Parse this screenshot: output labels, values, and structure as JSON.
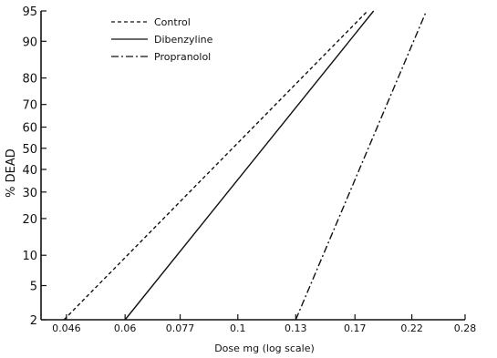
{
  "chart_data": {
    "type": "line",
    "xlabel": "Dose mg (log scale)",
    "ylabel": "% DEAD",
    "x_scale": "log",
    "y_scale": "probit",
    "xlim": [
      0.041,
      0.28
    ],
    "ylim": [
      2,
      95
    ],
    "x_ticks": [
      0.046,
      0.06,
      0.077,
      0.1,
      0.13,
      0.17,
      0.22,
      0.28
    ],
    "x_tick_labels": [
      "0.046",
      "0.06",
      "0.077",
      "0.1",
      "0.13",
      "0.17",
      "0.22",
      "0.28"
    ],
    "y_ticks": [
      2,
      5,
      10,
      20,
      30,
      40,
      50,
      60,
      70,
      80,
      90,
      95
    ],
    "y_tick_labels": [
      "2",
      "5",
      "10",
      "20",
      "30",
      "40",
      "50",
      "60",
      "70",
      "80",
      "90",
      "95"
    ],
    "legend_position": "top-left",
    "grid": false,
    "series": [
      {
        "name": "Control",
        "style": "dashed",
        "x": [
          0.0455,
          0.18
        ],
        "y": [
          2,
          95
        ]
      },
      {
        "name": "Dibenzyline",
        "style": "solid",
        "x": [
          0.06,
          0.185
        ],
        "y": [
          2,
          95
        ]
      },
      {
        "name": "Propranolol",
        "style": "dashdot",
        "x": [
          0.13,
          0.235
        ],
        "y": [
          2,
          95
        ]
      }
    ]
  },
  "colors": {
    "line": "#111111",
    "axis": "#111111",
    "background": "#ffffff"
  }
}
